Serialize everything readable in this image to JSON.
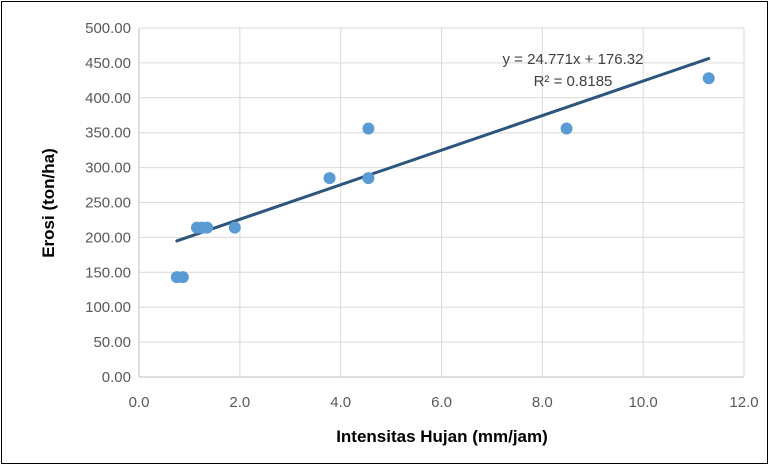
{
  "chart_data": {
    "type": "scatter",
    "xlabel": "Intensitas Hujan (mm/jam)",
    "ylabel": "Erosi (ton/ha)",
    "xlim": [
      0.0,
      12.0
    ],
    "ylim": [
      0.0,
      500.0
    ],
    "x_ticks": [
      "0.0",
      "2.0",
      "4.0",
      "6.0",
      "8.0",
      "10.0",
      "12.0"
    ],
    "y_ticks": [
      "0.00",
      "50.00",
      "100.00",
      "150.00",
      "200.00",
      "250.00",
      "300.00",
      "350.00",
      "400.00",
      "450.00",
      "500.00"
    ],
    "grid": true,
    "points": [
      {
        "x": 0.75,
        "y": 143
      },
      {
        "x": 0.87,
        "y": 143
      },
      {
        "x": 1.15,
        "y": 214
      },
      {
        "x": 1.25,
        "y": 214
      },
      {
        "x": 1.35,
        "y": 214
      },
      {
        "x": 1.9,
        "y": 214
      },
      {
        "x": 3.78,
        "y": 285
      },
      {
        "x": 4.55,
        "y": 285
      },
      {
        "x": 4.55,
        "y": 356
      },
      {
        "x": 8.48,
        "y": 356
      },
      {
        "x": 11.3,
        "y": 428
      }
    ],
    "trendline": {
      "type": "linear",
      "slope": 24.771,
      "intercept": 176.32,
      "x_range": [
        0.75,
        11.3
      ],
      "equation_label": "y = 24.771x + 176.32",
      "r2_label": "R² = 0.8185"
    },
    "colors": {
      "points": "#5b9bd5",
      "trendline": "#2e557d",
      "grid": "#d9d9d9"
    }
  }
}
